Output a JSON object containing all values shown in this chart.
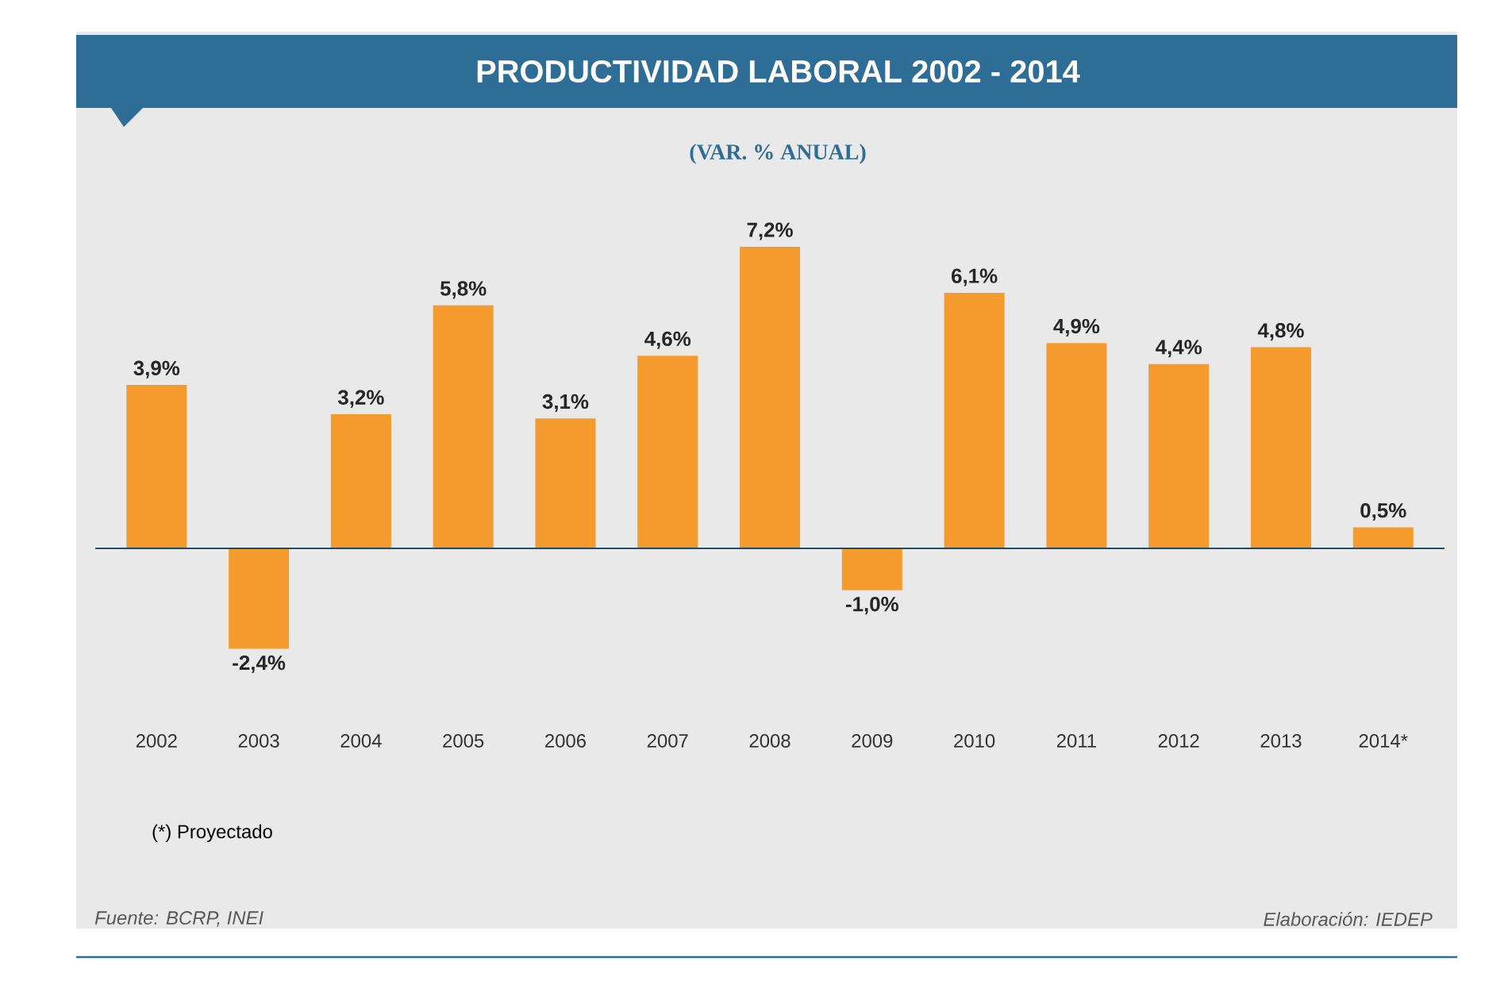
{
  "chart_data": {
    "type": "bar",
    "title": "PRODUCTIVIDAD LABORAL 2002 - 2014",
    "subtitle": "(VAR. % ANUAL)",
    "categories": [
      "2002",
      "2003",
      "2004",
      "2005",
      "2006",
      "2007",
      "2008",
      "2009",
      "2010",
      "2011",
      "2012",
      "2013",
      "2014*"
    ],
    "values": [
      3.9,
      -2.4,
      3.2,
      5.8,
      3.1,
      4.6,
      7.2,
      -1.0,
      6.1,
      4.9,
      4.4,
      4.8,
      0.5
    ],
    "value_labels": [
      "3,9%",
      "-2,4%",
      "3,2%",
      "5,8%",
      "3,1%",
      "4,6%",
      "7,2%",
      "-1,0%",
      "6,1%",
      "4,9%",
      "4,4%",
      "4,8%",
      "0,5%"
    ],
    "color": "#f59a2c",
    "annotations": [
      "(*) Proyectado",
      "Fuente: BCRP, INEI",
      "Elaboración: IEDEP"
    ],
    "ref_lines": [
      {
        "axis": "y",
        "value": 0,
        "color": "#204d69"
      }
    ],
    "grid": false,
    "tick_labels": "x"
  }
}
